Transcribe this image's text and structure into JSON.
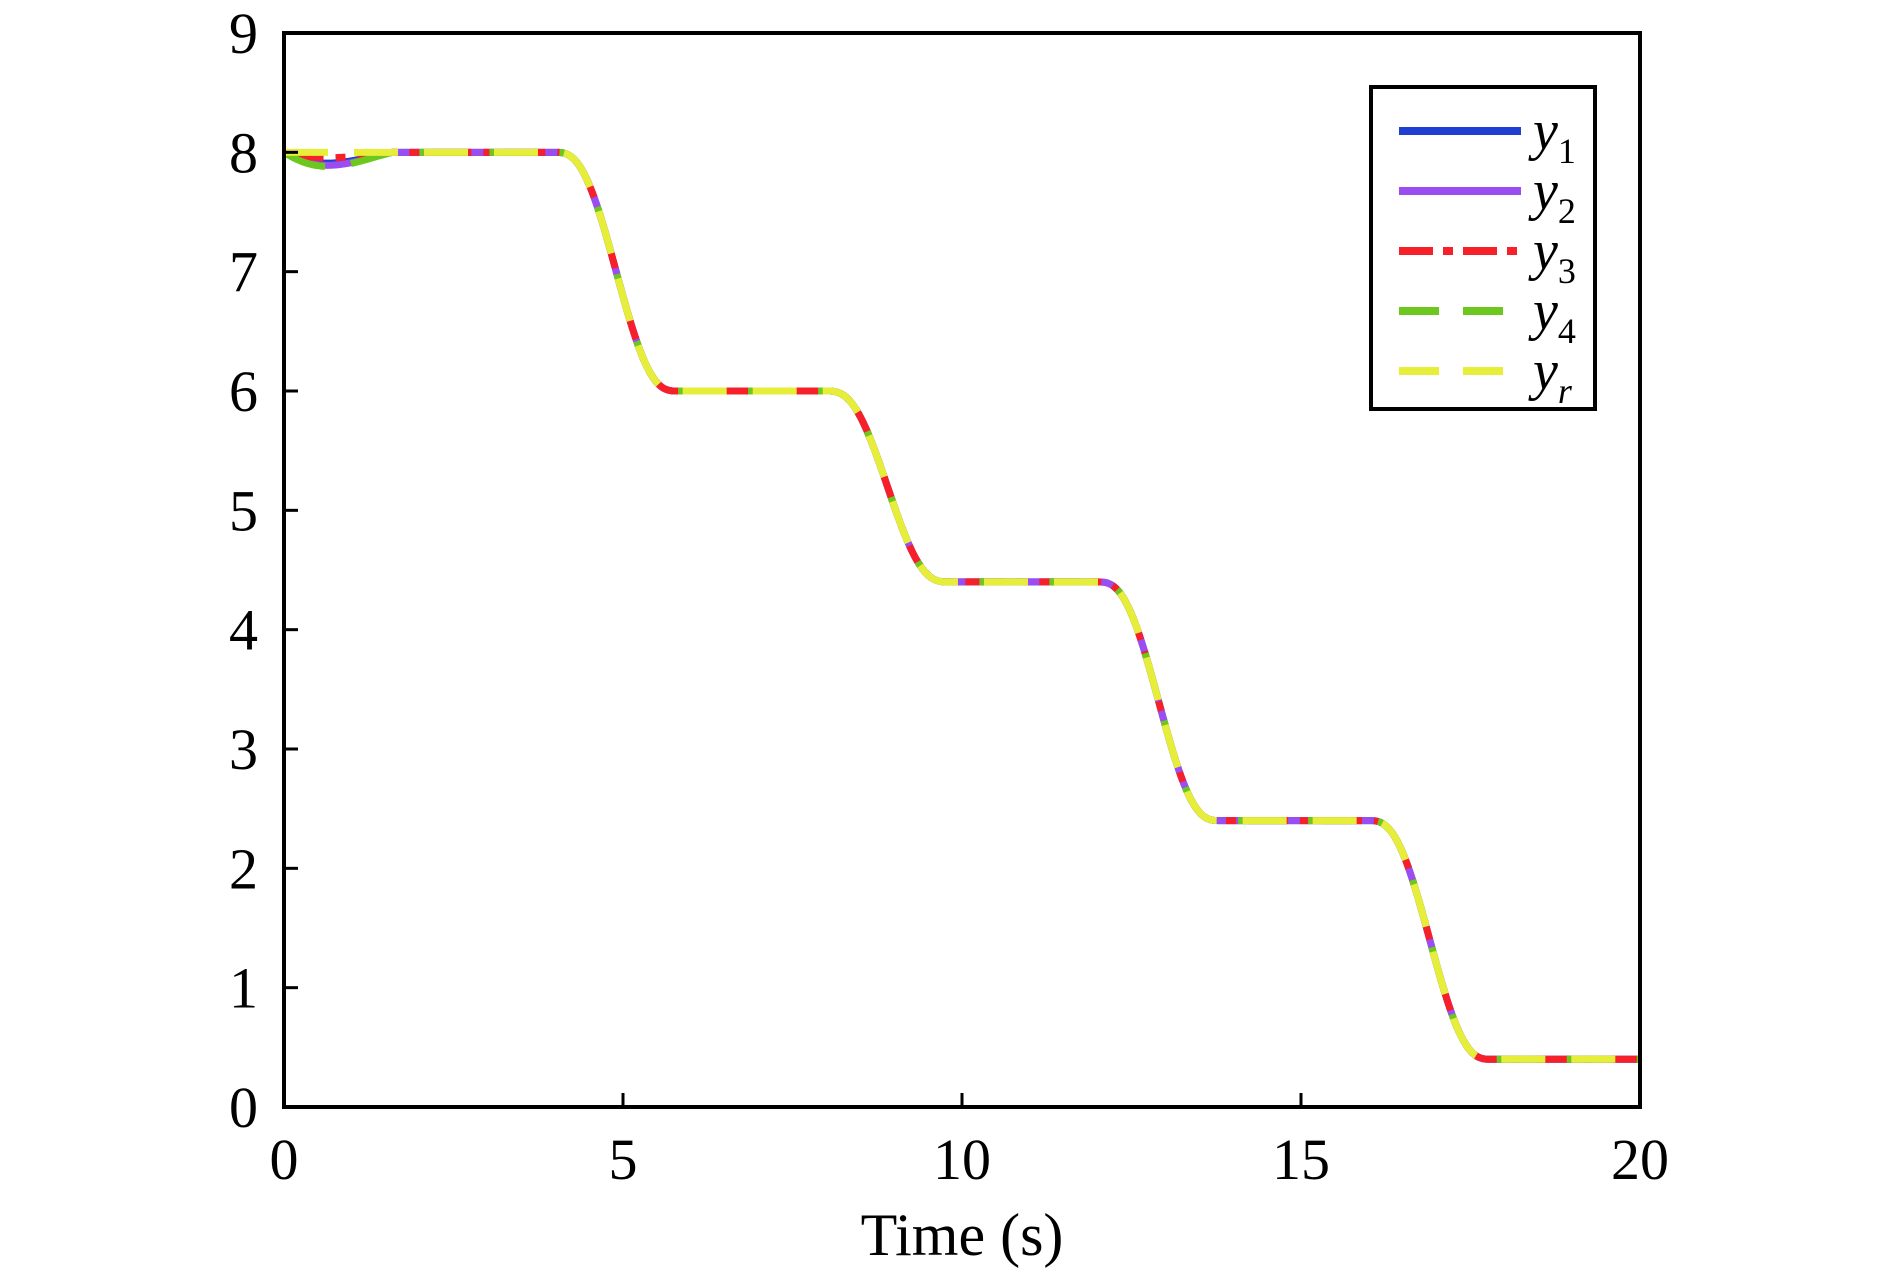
{
  "chart_data": {
    "type": "line",
    "title": "",
    "xlabel": "Time (s)",
    "ylabel": "",
    "xlim": [
      0,
      20
    ],
    "ylim": [
      0,
      9
    ],
    "xticks": [
      "0",
      "5",
      "10",
      "15",
      "20"
    ],
    "yticks": [
      "0",
      "1",
      "2",
      "3",
      "4",
      "5",
      "6",
      "7",
      "8",
      "9"
    ],
    "grid": false,
    "legend_position": "top-right",
    "reference_levels": [
      {
        "t_start": 0,
        "t_end": 4,
        "value": 8.0
      },
      {
        "t_start": 4,
        "t_end": 8,
        "value": 6.0
      },
      {
        "t_start": 8,
        "t_end": 12,
        "value": 4.4
      },
      {
        "t_start": 12,
        "t_end": 16,
        "value": 2.4
      },
      {
        "t_start": 16,
        "t_end": 20,
        "value": 0.4
      }
    ],
    "transition_duration": 1.8,
    "series": [
      {
        "name": "y",
        "subscript": "1",
        "color": "#1f3fd0",
        "style": "solid",
        "initial_dip": 0.1
      },
      {
        "name": "y",
        "subscript": "2",
        "color": "#9a4df0",
        "style": "solid",
        "initial_dip": 0.12
      },
      {
        "name": "y",
        "subscript": "3",
        "color": "#f5202a",
        "style": "dashdot",
        "initial_dip": 0.05
      },
      {
        "name": "y",
        "subscript": "4",
        "color": "#6cc81e",
        "style": "dashed",
        "initial_dip": 0.13
      },
      {
        "name": "y",
        "subscript": "r",
        "color": "#e6ee3a",
        "style": "dashed",
        "initial_dip": 0
      }
    ]
  }
}
